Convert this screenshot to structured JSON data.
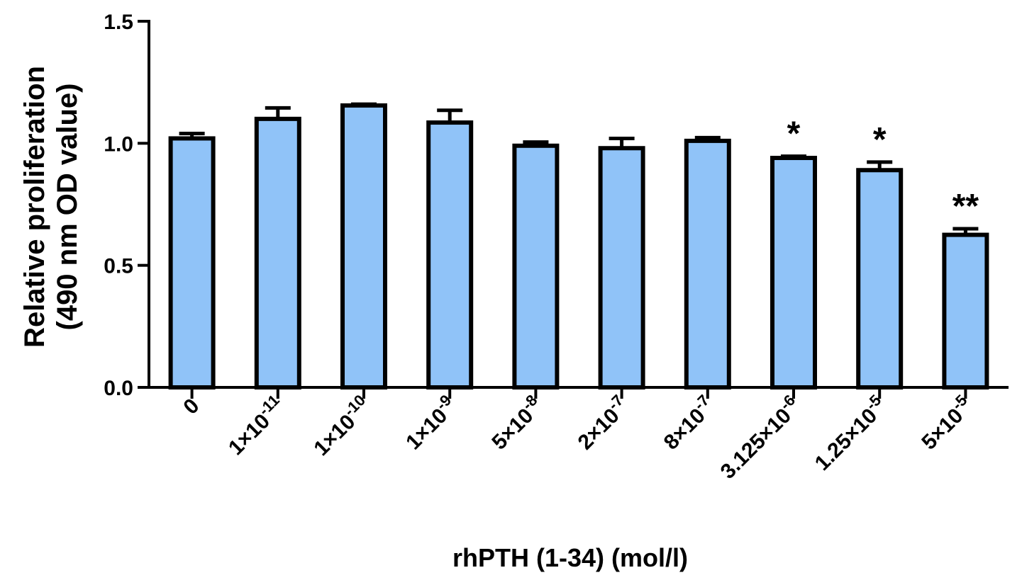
{
  "chart_data": {
    "type": "bar",
    "categories": [
      {
        "label": "0",
        "base": "0",
        "exp": ""
      },
      {
        "label": "1×10-11",
        "base": "1×10",
        "exp": "-11"
      },
      {
        "label": "1×10-10",
        "base": "1×10",
        "exp": "-10"
      },
      {
        "label": "1×10-9",
        "base": "1×10",
        "exp": "-9"
      },
      {
        "label": "5×10-8",
        "base": "5×10",
        "exp": "-8"
      },
      {
        "label": "2×10-7",
        "base": "2×10",
        "exp": "-7"
      },
      {
        "label": "8×10-7",
        "base": "8×10",
        "exp": "-7"
      },
      {
        "label": "3.125×10-6",
        "base": "3.125×10",
        "exp": "-6"
      },
      {
        "label": "1.25×10-5",
        "base": "1.25×10",
        "exp": "-5"
      },
      {
        "label": "5×10-5",
        "base": "5×10",
        "exp": "-5"
      }
    ],
    "values": [
      1.02,
      1.1,
      1.155,
      1.085,
      0.99,
      0.98,
      1.01,
      0.94,
      0.89,
      0.625
    ],
    "errors": [
      0.02,
      0.045,
      0.005,
      0.05,
      0.015,
      0.04,
      0.013,
      0.007,
      0.033,
      0.025
    ],
    "annotations": [
      "",
      "",
      "",
      "",
      "",
      "",
      "",
      "*",
      "*",
      "**"
    ],
    "ylabel_line1": "Relative proliferation",
    "ylabel_line2": "(490 nm OD value)",
    "xlabel": "rhPTH (1-34)  (mol/l)",
    "ylim": [
      0,
      1.5
    ],
    "yticks": [
      "0.0",
      "0.5",
      "1.0",
      "1.5"
    ],
    "bar_color": "#90c3f8",
    "grid": false,
    "legend": "none"
  }
}
